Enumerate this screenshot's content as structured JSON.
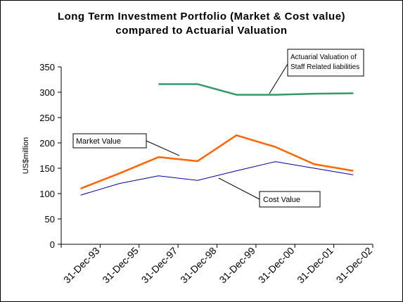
{
  "chart_data": {
    "type": "line",
    "title_line1": "Long Term Investment Portfolio (Market & Cost value)",
    "title_line2": "compared to Actuarial Valuation",
    "xlabel": "",
    "ylabel": "US$million",
    "ylim": [
      0,
      350
    ],
    "yticks": [
      0,
      50,
      100,
      150,
      200,
      250,
      300,
      350
    ],
    "categories": [
      "31-Dec-93",
      "31-Dec-95",
      "31-Dec-97",
      "31-Dec-98",
      "31-Dec-99",
      "31-Dec-00",
      "31-Dec-01",
      "31-Dec-02"
    ],
    "grid": false,
    "legend": "none",
    "series": [
      {
        "name": "Market Value",
        "color": "#ff6600",
        "points": [
          {
            "x": "31-Dec-93",
            "y": 110
          },
          {
            "x": "31-Dec-95",
            "y": 140
          },
          {
            "x": "31-Dec-97",
            "y": 172
          },
          {
            "x": "31-Dec-98",
            "y": 164
          },
          {
            "x": "31-Dec-99",
            "y": 215
          },
          {
            "x": "31-Dec-00",
            "y": 192
          },
          {
            "x": "31-Dec-01",
            "y": 158
          },
          {
            "x": "31-Dec-02",
            "y": 145
          }
        ]
      },
      {
        "name": "Cost Value",
        "color": "#000099",
        "points": [
          {
            "x": "31-Dec-93",
            "y": 97
          },
          {
            "x": "31-Dec-95",
            "y": 120
          },
          {
            "x": "31-Dec-97",
            "y": 135
          },
          {
            "x": "31-Dec-98",
            "y": 126
          },
          {
            "x": "31-Dec-99",
            "y": 145
          },
          {
            "x": "31-Dec-00",
            "y": 163
          },
          {
            "x": "31-Dec-01",
            "y": 150
          },
          {
            "x": "31-Dec-02",
            "y": 137
          }
        ]
      },
      {
        "name": "Actuarial Valuation of Staff Related liabilities",
        "color": "#339966",
        "points": [
          {
            "x": "31-Dec-97",
            "y": 316
          },
          {
            "x": "31-Dec-98",
            "y": 316
          },
          {
            "x": "31-Dec-99",
            "y": 295
          },
          {
            "x": "31-Dec-00",
            "y": 295
          },
          {
            "x": "31-Dec-01",
            "y": 297
          },
          {
            "x": "31-Dec-02",
            "y": 298
          }
        ]
      }
    ],
    "annotations": [
      {
        "name": "market-value-label",
        "lines": [
          "Market Value"
        ]
      },
      {
        "name": "cost-value-label",
        "lines": [
          "Cost Value"
        ]
      },
      {
        "name": "actuarial-label",
        "lines": [
          "Actuarial Valuation of",
          "Staff Related liabilities"
        ]
      }
    ]
  }
}
